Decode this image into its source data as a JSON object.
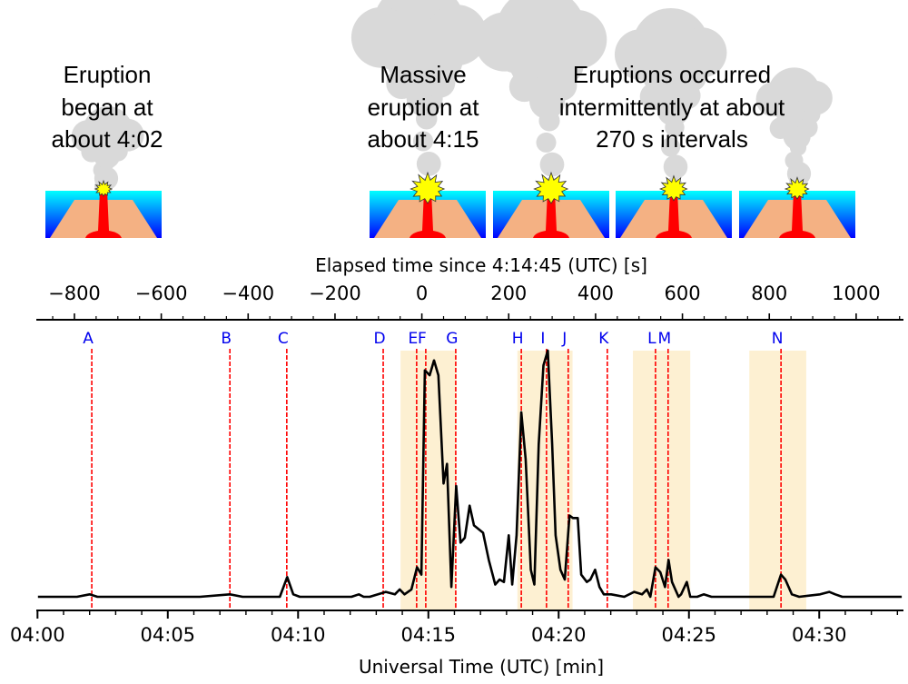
{
  "illustrations": {
    "captions": [
      {
        "lines": [
          "Eruption",
          "began at",
          "about 4:02"
        ]
      },
      {
        "lines": [
          "Massive",
          "eruption at",
          "about 4:15"
        ]
      },
      {
        "lines": [
          "Eruptions occurred",
          "intermittently at about",
          "270 s intervals"
        ]
      }
    ],
    "colors": {
      "cloud": "#d9d9d9",
      "water_top": "#00ffff",
      "water_bottom": "#0000ff",
      "volcano": "#f4b183",
      "magma": "#ff0000",
      "blast": "#ffff00"
    }
  },
  "chart_data": {
    "type": "line",
    "top_axis": {
      "label": "Elapsed time since 4:14:45 (UTC) [s]",
      "ticks": [
        -800,
        -600,
        -400,
        -200,
        0,
        200,
        400,
        600,
        800,
        1000
      ],
      "tick_labels": [
        "−800",
        "−600",
        "−400",
        "−200",
        "0",
        "200",
        "400",
        "600",
        "800",
        "1000"
      ]
    },
    "bottom_axis": {
      "label": "Universal Time (UTC) [min]",
      "tick_labels": [
        "04:00",
        "04:05",
        "04:10",
        "04:15",
        "04:20",
        "04:25",
        "04:30"
      ]
    },
    "xlim_elapsed_s": [
      -885,
      1110
    ],
    "y_axis": {
      "label": "",
      "ticks": "none",
      "ylim": [
        0,
        1.0
      ]
    },
    "series": [
      {
        "color": "#000000",
        "x_elapsed_s": [
          -884,
          -794,
          -765,
          -747,
          -710,
          -693,
          -511,
          -442,
          -413,
          -371,
          -327,
          -310,
          -296,
          -281,
          -162,
          -145,
          -134,
          -120,
          -83,
          -62,
          -51,
          -40,
          -24,
          -11,
          -1,
          7,
          18,
          28,
          38,
          50,
          58,
          68,
          79,
          89,
          99,
          110,
          120,
          141,
          154,
          169,
          179,
          189,
          200,
          208,
          218,
          229,
          239,
          251,
          259,
          269,
          280,
          290,
          300,
          308,
          319,
          329,
          340,
          348,
          359,
          367,
          380,
          388,
          399,
          409,
          419,
          436,
          466,
          489,
          507,
          518,
          526,
          538,
          549,
          560,
          568,
          576,
          591,
          597,
          610,
          618,
          634,
          649,
          667,
          800,
          810,
          827,
          837,
          852,
          869,
          917,
          938,
          952,
          968,
          1105
        ],
        "y_relative": [
          0,
          0,
          0.01,
          0,
          0,
          0,
          0,
          0.01,
          0,
          0,
          0,
          0.08,
          0.01,
          0,
          0,
          0.01,
          0,
          0,
          0.02,
          0.01,
          0.03,
          0.01,
          0.03,
          0.12,
          0.09,
          0.92,
          0.9,
          0.96,
          0.9,
          0.46,
          0.54,
          0.04,
          0.45,
          0.22,
          0.24,
          0.37,
          0.29,
          0.26,
          0.15,
          0.05,
          0.07,
          0.06,
          0.25,
          0.05,
          0.25,
          0.75,
          0.56,
          0.11,
          0.05,
          0.62,
          0.94,
          1.0,
          0.62,
          0.25,
          0.11,
          0.07,
          0.33,
          0.32,
          0.32,
          0.09,
          0.06,
          0.07,
          0.11,
          0.04,
          0.01,
          0.01,
          0,
          0.02,
          0.01,
          0.03,
          0,
          0.12,
          0.1,
          0.04,
          0.15,
          0.06,
          0,
          0.01,
          0.06,
          0,
          0,
          0.01,
          0,
          0,
          0,
          0.09,
          0.07,
          0.01,
          0,
          0.01,
          0.02,
          0.01,
          0,
          0
        ]
      }
    ],
    "markers": [
      {
        "label": "A",
        "x_elapsed_s": -760
      },
      {
        "label": "B",
        "x_elapsed_s": -442
      },
      {
        "label": "C",
        "x_elapsed_s": -311
      },
      {
        "label": "D",
        "x_elapsed_s": -89
      },
      {
        "label": "E",
        "x_elapsed_s": -12
      },
      {
        "label": "F",
        "x_elapsed_s": 9
      },
      {
        "label": "G",
        "x_elapsed_s": 78
      },
      {
        "label": "H",
        "x_elapsed_s": 229
      },
      {
        "label": "I",
        "x_elapsed_s": 287
      },
      {
        "label": "J",
        "x_elapsed_s": 337
      },
      {
        "label": "K",
        "x_elapsed_s": 427
      },
      {
        "label": "L",
        "x_elapsed_s": 538
      },
      {
        "label": "M",
        "x_elapsed_s": 567
      },
      {
        "label": "N",
        "x_elapsed_s": 827
      }
    ],
    "marker_color": "#ff0000",
    "marker_label_color": "#0000ee",
    "shaded_intervals_elapsed_s": [
      [
        -49,
        80
      ],
      [
        220,
        347
      ],
      [
        486,
        618
      ],
      [
        754,
        885
      ]
    ],
    "shade_color": "#fdf0d2",
    "grid": false,
    "legend": "none"
  }
}
